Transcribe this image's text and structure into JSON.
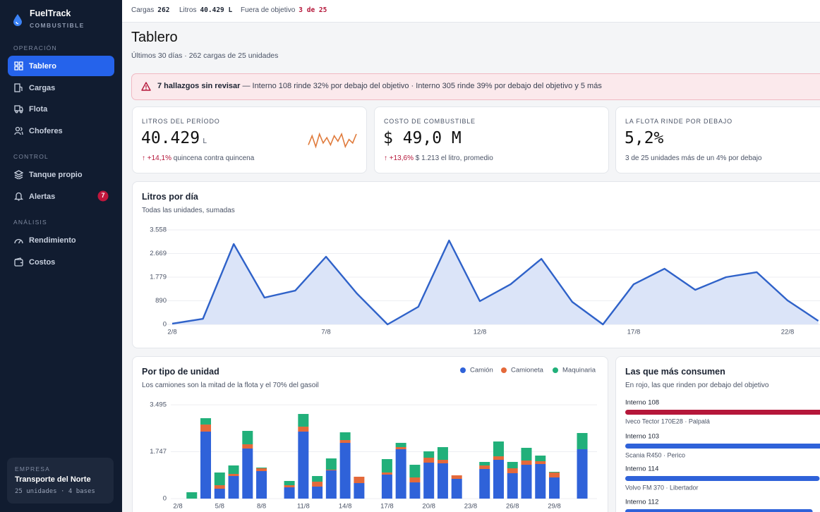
{
  "sidebar": {
    "brand": "FuelTrack",
    "brand_sub": "COMBUSTIBLE",
    "sections": [
      {
        "title": "OPERACIÓN",
        "items": [
          "Tablero",
          "Cargas",
          "Flota",
          "Choferes"
        ]
      },
      {
        "title": "CONTROL",
        "items": [
          "Tanque propio",
          "Alertas"
        ]
      },
      {
        "title": "ANÁLISIS",
        "items": [
          "Rendimiento",
          "Costos"
        ]
      }
    ],
    "alerts_badge": "7",
    "company": {
      "label": "EMPRESA",
      "name": "Transporte del Norte",
      "detail": "25 unidades · 4 bases"
    }
  },
  "topbar": [
    {
      "label": "Cargas",
      "value": "262"
    },
    {
      "label": "Litros",
      "value": "40.429 L"
    },
    {
      "label": "Fuera de objetivo",
      "value": "3 de 25"
    }
  ],
  "header": {
    "title": "Tablero",
    "subtitle": "Últimos 30 días · 262 cargas de 25 unidades"
  },
  "alert": {
    "strong": "7 hallazgos sin revisar",
    "text": "— Interno 108 rinde 32% por debajo del objetivo · Interno 305 rinde 39% por debajo del objetivo y 5 más"
  },
  "kpis": [
    {
      "label": "LITROS DEL PERÍODO",
      "value": "40.429",
      "unit": "L",
      "delta": "↑ +14,1%",
      "note": "quincena contra quincena",
      "sparkline": [
        3,
        8,
        2,
        9,
        4,
        7,
        3,
        8,
        5,
        9,
        2,
        6,
        4,
        9
      ],
      "sparkline_color": "#e07b3c"
    },
    {
      "label": "COSTO DE COMBUSTIBLE",
      "value": "$ 49,0 M",
      "delta": "↑ +13,6%",
      "note": "$ 1.213 el litro, promedio"
    },
    {
      "label": "LA FLOTA RINDE POR DEBAJO",
      "value": "5,2%",
      "note": "3 de 25 unidades más de un 4% por debajo"
    }
  ],
  "chart_data": [
    {
      "type": "line",
      "title": "Litros por día",
      "subtitle": "Todas las unidades, sumadas",
      "categories": [
        "2/8",
        null,
        null,
        null,
        null,
        "7/8",
        null,
        null,
        null,
        null,
        "12/8",
        null,
        null,
        null,
        null,
        "17/8",
        null,
        null,
        null,
        null,
        "22/8",
        null
      ],
      "values": [
        27,
        212,
        3027,
        1009,
        1274,
        2549,
        1168,
        0,
        664,
        3160,
        876,
        1513,
        2469,
        850,
        0,
        1513,
        2097,
        1301,
        1779,
        1965,
        903,
        133
      ],
      "color": "#2f62c9",
      "fill": "#dbe4f8",
      "ylim": [
        0,
        3558
      ],
      "yticks": [
        0,
        890,
        {
          "value": 1779,
          "label": "1.779"
        },
        {
          "value": 2669,
          "label": "2.669"
        },
        {
          "value": 3558,
          "label": "3.558"
        }
      ],
      "grid": true
    },
    {
      "type": "bar",
      "stacked": true,
      "title": "Por tipo de unidad",
      "subtitle": "Los camiones son la mitad de la flota y el 70% del gasoil",
      "categories": [
        "2/8",
        null,
        null,
        "5/8",
        null,
        null,
        "8/8",
        null,
        null,
        "11/8",
        null,
        null,
        "14/8",
        null,
        null,
        "17/8",
        null,
        null,
        "20/8",
        null,
        null,
        "23/8",
        null,
        null,
        "26/8",
        null,
        null,
        "29/8",
        null,
        null
      ],
      "series": [
        {
          "name": "Camión",
          "color": "#2f62d9",
          "values": [
            0,
            0,
            2497,
            368,
            841,
            1866,
            1025,
            0,
            420,
            2497,
            447,
            1051,
            2076,
            578,
            0,
            894,
            1840,
            604,
            1340,
            1314,
            736,
            0,
            1104,
            1445,
            946,
            1261,
            1288,
            788,
            0,
            1840
          ]
        },
        {
          "name": "Camioneta",
          "color": "#e4693a",
          "values": [
            0,
            0,
            263,
            131,
            79,
            158,
            105,
            0,
            79,
            184,
            184,
            26,
            105,
            237,
            0,
            79,
            79,
            184,
            184,
            131,
            131,
            0,
            131,
            131,
            184,
            158,
            105,
            184,
            0,
            0
          ]
        },
        {
          "name": "Maquinaria",
          "color": "#21b07a",
          "values": [
            0,
            237,
            237,
            473,
            315,
            499,
            26,
            0,
            158,
            473,
            210,
            420,
            289,
            0,
            0,
            499,
            158,
            473,
            237,
            473,
            0,
            0,
            131,
            552,
            237,
            473,
            210,
            26,
            0,
            604
          ]
        }
      ],
      "ylim": [
        0,
        3495
      ],
      "yticks": [
        0,
        {
          "value": 1747,
          "label": "1.747"
        },
        {
          "value": 3495,
          "label": "3.495"
        }
      ],
      "grid": true,
      "legend": "top-right"
    },
    {
      "type": "hbar",
      "title": "Las que más consumen",
      "subtitle": "En rojo, las que rinden por debajo del objetivo",
      "items": [
        {
          "name": "Interno 108",
          "detail": "Iveco Tector 170E28 · Palpalá",
          "value": 6100,
          "color": "#b5173a"
        },
        {
          "name": "Interno 103",
          "detail": "Scania R450 · Perico",
          "value": 5800,
          "color": "#2f62d9"
        },
        {
          "name": "Interno 114",
          "detail": "Volvo FM 370 · Libertador",
          "value": 5600,
          "color": "#2f62d9"
        },
        {
          "name": "Interno 112",
          "value": 5400,
          "color": "#2f62d9"
        }
      ]
    }
  ]
}
